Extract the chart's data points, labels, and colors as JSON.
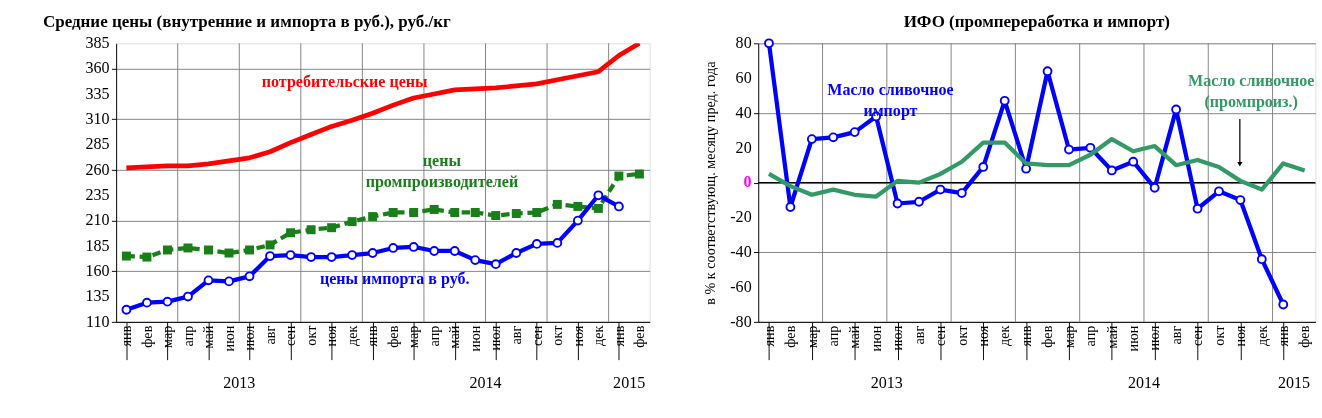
{
  "chart_data": [
    {
      "type": "line",
      "title": "Средние цены (внутренние и импорта в руб.), руб./кг",
      "categories": [
        "янв",
        "фев",
        "мар",
        "апр",
        "май",
        "июн",
        "июл",
        "авг",
        "сен",
        "окт",
        "ноя",
        "дек",
        "янв",
        "фев",
        "мар",
        "апр",
        "май",
        "июн",
        "июл",
        "авг",
        "сен",
        "окт",
        "ноя",
        "дек",
        "янв",
        "фев"
      ],
      "series": [
        {
          "name": "потребительские цены",
          "color": "#ff0000",
          "marker": "none",
          "line_style": "solid",
          "values": [
            262,
            263,
            264,
            264,
            266,
            269,
            272,
            278,
            287,
            295,
            303,
            309,
            316,
            324,
            331,
            335,
            339,
            340,
            341,
            343,
            345,
            349,
            353,
            357,
            373,
            385
          ]
        },
        {
          "name": "цены промпроизводителей",
          "color": "#1a7f1a",
          "marker": "square",
          "line_style": "dashed",
          "values": [
            175,
            174,
            181,
            183,
            181,
            178,
            181,
            186,
            198,
            201,
            203,
            209,
            214,
            218,
            218,
            221,
            218,
            218,
            215,
            217,
            218,
            226,
            224,
            222,
            254,
            256
          ]
        },
        {
          "name": "цены импорта в руб.",
          "color": "#0000ff",
          "marker": "circle",
          "line_style": "solid",
          "values": [
            122,
            129,
            130,
            135,
            151,
            150,
            155,
            175,
            176,
            174,
            174,
            176,
            178,
            183,
            184,
            180,
            180,
            171,
            167,
            178,
            187,
            188,
            210,
            235,
            224,
            null
          ]
        }
      ],
      "ylim": [
        110,
        385
      ],
      "yticks": [
        110,
        135,
        160,
        185,
        210,
        235,
        260,
        285,
        310,
        335,
        360,
        385
      ],
      "grid": true,
      "legend": false,
      "annotations": [
        "2013",
        "2014",
        "2015"
      ]
    },
    {
      "type": "line",
      "title": "ИФО (промпереработка и импорт)",
      "ylabel": "в % к соответствующ. месяцу пред. года",
      "categories": [
        "янв",
        "фев",
        "мар",
        "апр",
        "май",
        "июн",
        "июл",
        "авг",
        "сен",
        "окт",
        "ноя",
        "дек",
        "янв",
        "фев",
        "мар",
        "апр",
        "май",
        "июн",
        "июл",
        "авг",
        "сен",
        "окт",
        "ноя",
        "дек",
        "янв",
        "фев"
      ],
      "series": [
        {
          "name": "Масло сливочное импорт",
          "color": "#0000ff",
          "marker": "circle",
          "line_style": "solid",
          "values": [
            80,
            -14,
            25,
            26,
            29,
            38,
            -12,
            -11,
            -4,
            -6,
            9,
            47,
            8,
            64,
            19,
            20,
            7,
            12,
            -3,
            42,
            -15,
            -5,
            -10,
            -44,
            -70,
            null
          ]
        },
        {
          "name": "Масло сливочное (промпроиз.)",
          "color": "#339966",
          "marker": "none",
          "line_style": "solid",
          "values": [
            5,
            -2,
            -7,
            -4,
            -7,
            -8,
            1,
            0,
            5,
            12,
            23,
            23,
            11,
            10,
            10,
            16,
            25,
            18,
            21,
            10,
            13,
            9,
            1,
            -4,
            11,
            7
          ]
        }
      ],
      "ylim": [
        -80,
        80
      ],
      "yticks": [
        -80,
        -60,
        -40,
        -20,
        0,
        20,
        40,
        60,
        80
      ],
      "grid": true,
      "legend": false,
      "annotations": [
        "2013",
        "2014",
        "2015"
      ]
    }
  ]
}
